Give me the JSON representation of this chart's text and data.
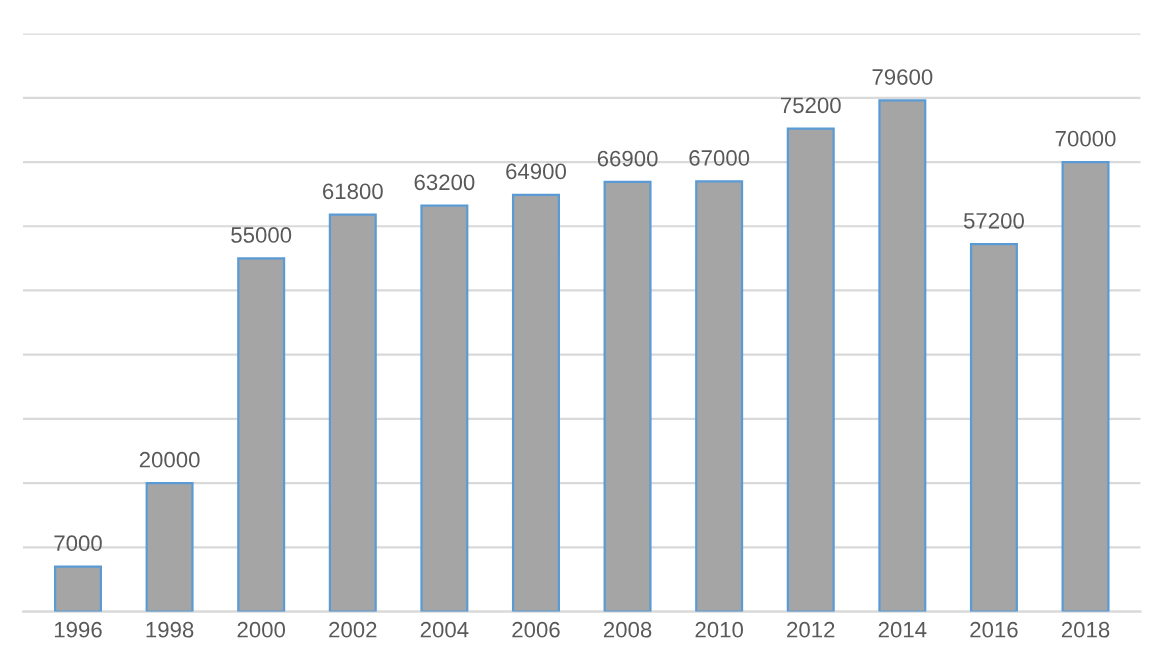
{
  "chart_data": {
    "type": "bar",
    "categories": [
      "1996",
      "1998",
      "2000",
      "2002",
      "2004",
      "2006",
      "2008",
      "2010",
      "2012",
      "2014",
      "2016",
      "2018"
    ],
    "values": [
      7000,
      20000,
      55000,
      61800,
      63200,
      64900,
      66900,
      67000,
      75200,
      79600,
      57200,
      70000
    ],
    "color": "#a5a5a5",
    "ylim": [
      0,
      90000
    ],
    "yticks": [
      {
        "value": 0,
        "label": null
      },
      {
        "value": 10000,
        "label": null
      },
      {
        "value": 20000,
        "label": null
      },
      {
        "value": 30000,
        "label": null
      },
      {
        "value": 40000,
        "label": null
      },
      {
        "value": 50000,
        "label": null
      },
      {
        "value": 60000,
        "label": null
      },
      {
        "value": 70000,
        "label": null
      },
      {
        "value": 80000,
        "label": null
      },
      {
        "value": 90000,
        "label": null
      }
    ],
    "tick_labels": "x",
    "grid": "y",
    "data_labels": true
  }
}
